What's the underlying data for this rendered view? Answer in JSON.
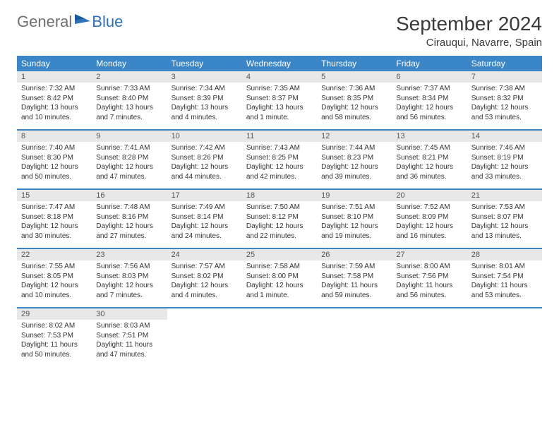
{
  "logo": {
    "text1": "General",
    "text2": "Blue"
  },
  "title": "September 2024",
  "location": "Cirauqui, Navarre, Spain",
  "colors": {
    "header_bg": "#3b86c6",
    "header_text": "#ffffff",
    "daynum_bg": "#e8e8e8",
    "daynum_text": "#555555",
    "body_text": "#333333",
    "logo_gray": "#707070",
    "logo_blue": "#2f71b8",
    "border": "#3b86c6"
  },
  "weekdays": [
    "Sunday",
    "Monday",
    "Tuesday",
    "Wednesday",
    "Thursday",
    "Friday",
    "Saturday"
  ],
  "weeks": [
    [
      {
        "n": "1",
        "l1": "Sunrise: 7:32 AM",
        "l2": "Sunset: 8:42 PM",
        "l3": "Daylight: 13 hours",
        "l4": "and 10 minutes."
      },
      {
        "n": "2",
        "l1": "Sunrise: 7:33 AM",
        "l2": "Sunset: 8:40 PM",
        "l3": "Daylight: 13 hours",
        "l4": "and 7 minutes."
      },
      {
        "n": "3",
        "l1": "Sunrise: 7:34 AM",
        "l2": "Sunset: 8:39 PM",
        "l3": "Daylight: 13 hours",
        "l4": "and 4 minutes."
      },
      {
        "n": "4",
        "l1": "Sunrise: 7:35 AM",
        "l2": "Sunset: 8:37 PM",
        "l3": "Daylight: 13 hours",
        "l4": "and 1 minute."
      },
      {
        "n": "5",
        "l1": "Sunrise: 7:36 AM",
        "l2": "Sunset: 8:35 PM",
        "l3": "Daylight: 12 hours",
        "l4": "and 58 minutes."
      },
      {
        "n": "6",
        "l1": "Sunrise: 7:37 AM",
        "l2": "Sunset: 8:34 PM",
        "l3": "Daylight: 12 hours",
        "l4": "and 56 minutes."
      },
      {
        "n": "7",
        "l1": "Sunrise: 7:38 AM",
        "l2": "Sunset: 8:32 PM",
        "l3": "Daylight: 12 hours",
        "l4": "and 53 minutes."
      }
    ],
    [
      {
        "n": "8",
        "l1": "Sunrise: 7:40 AM",
        "l2": "Sunset: 8:30 PM",
        "l3": "Daylight: 12 hours",
        "l4": "and 50 minutes."
      },
      {
        "n": "9",
        "l1": "Sunrise: 7:41 AM",
        "l2": "Sunset: 8:28 PM",
        "l3": "Daylight: 12 hours",
        "l4": "and 47 minutes."
      },
      {
        "n": "10",
        "l1": "Sunrise: 7:42 AM",
        "l2": "Sunset: 8:26 PM",
        "l3": "Daylight: 12 hours",
        "l4": "and 44 minutes."
      },
      {
        "n": "11",
        "l1": "Sunrise: 7:43 AM",
        "l2": "Sunset: 8:25 PM",
        "l3": "Daylight: 12 hours",
        "l4": "and 42 minutes."
      },
      {
        "n": "12",
        "l1": "Sunrise: 7:44 AM",
        "l2": "Sunset: 8:23 PM",
        "l3": "Daylight: 12 hours",
        "l4": "and 39 minutes."
      },
      {
        "n": "13",
        "l1": "Sunrise: 7:45 AM",
        "l2": "Sunset: 8:21 PM",
        "l3": "Daylight: 12 hours",
        "l4": "and 36 minutes."
      },
      {
        "n": "14",
        "l1": "Sunrise: 7:46 AM",
        "l2": "Sunset: 8:19 PM",
        "l3": "Daylight: 12 hours",
        "l4": "and 33 minutes."
      }
    ],
    [
      {
        "n": "15",
        "l1": "Sunrise: 7:47 AM",
        "l2": "Sunset: 8:18 PM",
        "l3": "Daylight: 12 hours",
        "l4": "and 30 minutes."
      },
      {
        "n": "16",
        "l1": "Sunrise: 7:48 AM",
        "l2": "Sunset: 8:16 PM",
        "l3": "Daylight: 12 hours",
        "l4": "and 27 minutes."
      },
      {
        "n": "17",
        "l1": "Sunrise: 7:49 AM",
        "l2": "Sunset: 8:14 PM",
        "l3": "Daylight: 12 hours",
        "l4": "and 24 minutes."
      },
      {
        "n": "18",
        "l1": "Sunrise: 7:50 AM",
        "l2": "Sunset: 8:12 PM",
        "l3": "Daylight: 12 hours",
        "l4": "and 22 minutes."
      },
      {
        "n": "19",
        "l1": "Sunrise: 7:51 AM",
        "l2": "Sunset: 8:10 PM",
        "l3": "Daylight: 12 hours",
        "l4": "and 19 minutes."
      },
      {
        "n": "20",
        "l1": "Sunrise: 7:52 AM",
        "l2": "Sunset: 8:09 PM",
        "l3": "Daylight: 12 hours",
        "l4": "and 16 minutes."
      },
      {
        "n": "21",
        "l1": "Sunrise: 7:53 AM",
        "l2": "Sunset: 8:07 PM",
        "l3": "Daylight: 12 hours",
        "l4": "and 13 minutes."
      }
    ],
    [
      {
        "n": "22",
        "l1": "Sunrise: 7:55 AM",
        "l2": "Sunset: 8:05 PM",
        "l3": "Daylight: 12 hours",
        "l4": "and 10 minutes."
      },
      {
        "n": "23",
        "l1": "Sunrise: 7:56 AM",
        "l2": "Sunset: 8:03 PM",
        "l3": "Daylight: 12 hours",
        "l4": "and 7 minutes."
      },
      {
        "n": "24",
        "l1": "Sunrise: 7:57 AM",
        "l2": "Sunset: 8:02 PM",
        "l3": "Daylight: 12 hours",
        "l4": "and 4 minutes."
      },
      {
        "n": "25",
        "l1": "Sunrise: 7:58 AM",
        "l2": "Sunset: 8:00 PM",
        "l3": "Daylight: 12 hours",
        "l4": "and 1 minute."
      },
      {
        "n": "26",
        "l1": "Sunrise: 7:59 AM",
        "l2": "Sunset: 7:58 PM",
        "l3": "Daylight: 11 hours",
        "l4": "and 59 minutes."
      },
      {
        "n": "27",
        "l1": "Sunrise: 8:00 AM",
        "l2": "Sunset: 7:56 PM",
        "l3": "Daylight: 11 hours",
        "l4": "and 56 minutes."
      },
      {
        "n": "28",
        "l1": "Sunrise: 8:01 AM",
        "l2": "Sunset: 7:54 PM",
        "l3": "Daylight: 11 hours",
        "l4": "and 53 minutes."
      }
    ],
    [
      {
        "n": "29",
        "l1": "Sunrise: 8:02 AM",
        "l2": "Sunset: 7:53 PM",
        "l3": "Daylight: 11 hours",
        "l4": "and 50 minutes."
      },
      {
        "n": "30",
        "l1": "Sunrise: 8:03 AM",
        "l2": "Sunset: 7:51 PM",
        "l3": "Daylight: 11 hours",
        "l4": "and 47 minutes."
      },
      null,
      null,
      null,
      null,
      null
    ]
  ]
}
